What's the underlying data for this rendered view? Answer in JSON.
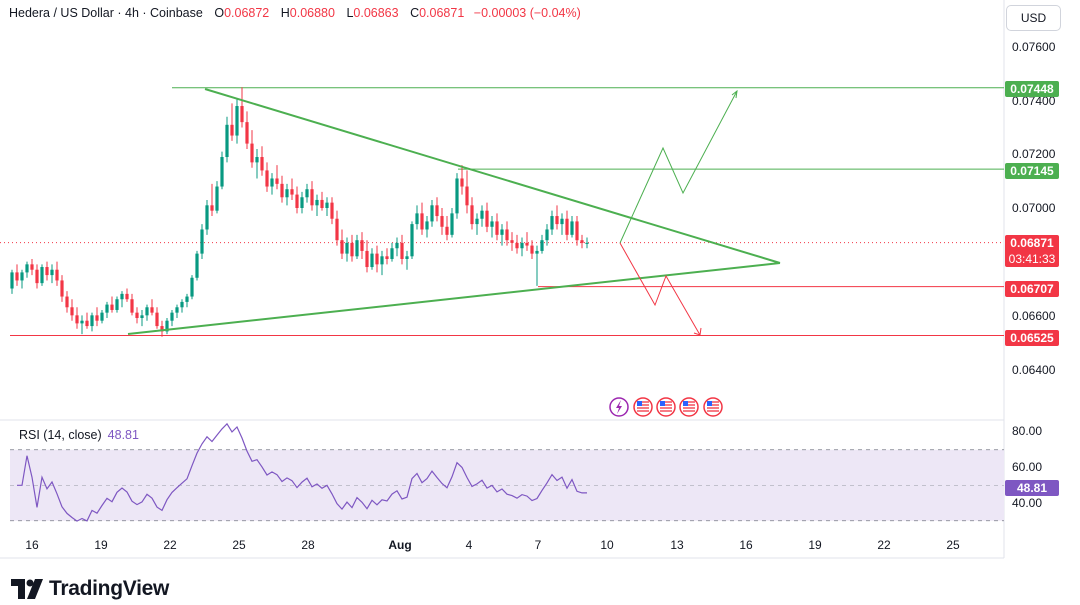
{
  "header": {
    "symbol": "Hedera / US Dollar · 4h · Coinbase",
    "o_label": "O",
    "o_value": "0.06872",
    "h_label": "H",
    "h_value": "0.06880",
    "l_label": "L",
    "l_value": "0.06863",
    "c_label": "C",
    "c_value": "0.06871",
    "change": "−0.00003 (−0.04%)"
  },
  "currency_button": "USD",
  "rsi": {
    "label": "RSI (14, close)",
    "value": "48.81",
    "ticks": [
      "80.00",
      "60.00",
      "40.00"
    ]
  },
  "brand": {
    "name": "TradingView"
  },
  "colors": {
    "up": "#089981",
    "down": "#f23645",
    "pattern": "#4caf50",
    "rsi": "#7e57c2",
    "rsi_band": "#ede7f6"
  },
  "chart_data": {
    "type": "candlestick",
    "instrument": "Hedera / US Dollar",
    "timeframe": "4h",
    "exchange": "Coinbase",
    "y_ticks": [
      "0.07600",
      "0.07400",
      "0.07200",
      "0.07000",
      "0.06600",
      "0.06400"
    ],
    "ylim": [
      0.0632,
      0.0777
    ],
    "x_ticks": [
      "16",
      "19",
      "22",
      "25",
      "28",
      "Aug",
      "4",
      "7",
      "10",
      "13",
      "16",
      "19",
      "22",
      "25"
    ],
    "last_price": {
      "value": "0.06871",
      "countdown": "03:41:33"
    },
    "levels": [
      {
        "price": 0.07448,
        "label": "0.07448",
        "color": "#4caf50"
      },
      {
        "price": 0.07145,
        "label": "0.07145",
        "color": "#4caf50"
      },
      {
        "price": 0.06707,
        "label": "0.06707",
        "color": "#f23645"
      },
      {
        "price": 0.06525,
        "label": "0.06525",
        "color": "#f23645"
      }
    ],
    "candles_approx": [
      [
        0.067,
        0.0677,
        0.0668,
        0.0676
      ],
      [
        0.0676,
        0.0679,
        0.0671,
        0.0673
      ],
      [
        0.0673,
        0.0677,
        0.067,
        0.0676
      ],
      [
        0.0676,
        0.068,
        0.0674,
        0.0679
      ],
      [
        0.0679,
        0.0681,
        0.0675,
        0.0677
      ],
      [
        0.0677,
        0.0679,
        0.067,
        0.0672
      ],
      [
        0.0672,
        0.0679,
        0.0671,
        0.0678
      ],
      [
        0.0678,
        0.068,
        0.0673,
        0.0675
      ],
      [
        0.0675,
        0.0679,
        0.0672,
        0.0677
      ],
      [
        0.0677,
        0.068,
        0.0671,
        0.0673
      ],
      [
        0.0673,
        0.0675,
        0.0665,
        0.0667
      ],
      [
        0.0667,
        0.0669,
        0.0661,
        0.0663
      ],
      [
        0.0663,
        0.0666,
        0.0658,
        0.066
      ],
      [
        0.066,
        0.0663,
        0.0655,
        0.0657
      ],
      [
        0.0657,
        0.066,
        0.0653,
        0.0658
      ],
      [
        0.0658,
        0.0661,
        0.0655,
        0.0656
      ],
      [
        0.0656,
        0.0661,
        0.0654,
        0.066
      ],
      [
        0.066,
        0.0663,
        0.0656,
        0.0658
      ],
      [
        0.0658,
        0.0662,
        0.0657,
        0.0661
      ],
      [
        0.0661,
        0.0665,
        0.0659,
        0.0664
      ],
      [
        0.0664,
        0.0667,
        0.0661,
        0.0662
      ],
      [
        0.0662,
        0.0667,
        0.0661,
        0.0666
      ],
      [
        0.0666,
        0.0669,
        0.0663,
        0.0668
      ],
      [
        0.0668,
        0.067,
        0.0665,
        0.0666
      ],
      [
        0.0666,
        0.0668,
        0.066,
        0.0661
      ],
      [
        0.0661,
        0.0663,
        0.0657,
        0.0659
      ],
      [
        0.0659,
        0.0662,
        0.0656,
        0.066
      ],
      [
        0.066,
        0.0664,
        0.0658,
        0.0663
      ],
      [
        0.0663,
        0.0666,
        0.066,
        0.0661
      ],
      [
        0.0661,
        0.0663,
        0.0655,
        0.0656
      ],
      [
        0.0656,
        0.0658,
        0.0652,
        0.0654
      ],
      [
        0.0654,
        0.0659,
        0.0653,
        0.0658
      ],
      [
        0.0658,
        0.0662,
        0.0656,
        0.0661
      ],
      [
        0.0661,
        0.0664,
        0.0659,
        0.0663
      ],
      [
        0.0663,
        0.0666,
        0.0661,
        0.0665
      ],
      [
        0.0665,
        0.0668,
        0.0663,
        0.0667
      ],
      [
        0.0667,
        0.0675,
        0.0666,
        0.0674
      ],
      [
        0.0674,
        0.0684,
        0.0673,
        0.0683
      ],
      [
        0.0683,
        0.0694,
        0.0681,
        0.0692
      ],
      [
        0.0692,
        0.0703,
        0.069,
        0.0701
      ],
      [
        0.0701,
        0.0709,
        0.0697,
        0.0699
      ],
      [
        0.0699,
        0.071,
        0.0698,
        0.0708
      ],
      [
        0.0708,
        0.0721,
        0.0707,
        0.0719
      ],
      [
        0.0719,
        0.0734,
        0.0717,
        0.0731
      ],
      [
        0.0731,
        0.0739,
        0.0725,
        0.0727
      ],
      [
        0.0727,
        0.0741,
        0.0724,
        0.0738
      ],
      [
        0.0738,
        0.0745,
        0.073,
        0.0732
      ],
      [
        0.0732,
        0.0736,
        0.0722,
        0.0724
      ],
      [
        0.0724,
        0.0729,
        0.0715,
        0.0717
      ],
      [
        0.0717,
        0.0722,
        0.0711,
        0.0719
      ],
      [
        0.0719,
        0.0723,
        0.0712,
        0.0714
      ],
      [
        0.0714,
        0.0717,
        0.0706,
        0.0708
      ],
      [
        0.0708,
        0.0713,
        0.0705,
        0.0711
      ],
      [
        0.0711,
        0.0716,
        0.0707,
        0.0709
      ],
      [
        0.0709,
        0.0712,
        0.0702,
        0.0704
      ],
      [
        0.0704,
        0.0709,
        0.0701,
        0.0707
      ],
      [
        0.0707,
        0.0711,
        0.0703,
        0.0705
      ],
      [
        0.0705,
        0.0708,
        0.0698,
        0.07
      ],
      [
        0.07,
        0.0706,
        0.0698,
        0.0704
      ],
      [
        0.0704,
        0.0709,
        0.0702,
        0.0707
      ],
      [
        0.0707,
        0.071,
        0.0699,
        0.0701
      ],
      [
        0.0701,
        0.0705,
        0.0697,
        0.0703
      ],
      [
        0.0703,
        0.0706,
        0.0699,
        0.07
      ],
      [
        0.07,
        0.0704,
        0.0697,
        0.0702
      ],
      [
        0.0702,
        0.0704,
        0.0694,
        0.0696
      ],
      [
        0.0696,
        0.0699,
        0.0686,
        0.0688
      ],
      [
        0.0688,
        0.0692,
        0.0681,
        0.0683
      ],
      [
        0.0683,
        0.0689,
        0.068,
        0.0687
      ],
      [
        0.0687,
        0.069,
        0.068,
        0.0682
      ],
      [
        0.0682,
        0.069,
        0.0681,
        0.0688
      ],
      [
        0.0688,
        0.0691,
        0.0681,
        0.0684
      ],
      [
        0.0684,
        0.0688,
        0.0676,
        0.0678
      ],
      [
        0.0678,
        0.0685,
        0.0677,
        0.0683
      ],
      [
        0.0683,
        0.0686,
        0.0676,
        0.0679
      ],
      [
        0.0679,
        0.0684,
        0.0675,
        0.0682
      ],
      [
        0.0682,
        0.0685,
        0.0679,
        0.0681
      ],
      [
        0.0681,
        0.0687,
        0.068,
        0.0685
      ],
      [
        0.0685,
        0.0689,
        0.0682,
        0.0687
      ],
      [
        0.0687,
        0.069,
        0.0679,
        0.0681
      ],
      [
        0.0681,
        0.0684,
        0.0677,
        0.0682
      ],
      [
        0.0682,
        0.0695,
        0.0681,
        0.0694
      ],
      [
        0.0694,
        0.0701,
        0.0692,
        0.0698
      ],
      [
        0.0698,
        0.0702,
        0.069,
        0.0692
      ],
      [
        0.0692,
        0.0697,
        0.0689,
        0.0695
      ],
      [
        0.0695,
        0.0703,
        0.0693,
        0.0701
      ],
      [
        0.0701,
        0.0704,
        0.0695,
        0.0697
      ],
      [
        0.0697,
        0.07,
        0.069,
        0.0693
      ],
      [
        0.0693,
        0.0697,
        0.0688,
        0.069
      ],
      [
        0.069,
        0.07,
        0.0689,
        0.0698
      ],
      [
        0.0698,
        0.0713,
        0.0696,
        0.0711
      ],
      [
        0.0711,
        0.0716,
        0.0705,
        0.0708
      ],
      [
        0.0708,
        0.0714,
        0.0698,
        0.0701
      ],
      [
        0.0701,
        0.0704,
        0.0692,
        0.0694
      ],
      [
        0.0694,
        0.0698,
        0.069,
        0.0696
      ],
      [
        0.0696,
        0.0701,
        0.0693,
        0.0699
      ],
      [
        0.0699,
        0.0702,
        0.0691,
        0.0693
      ],
      [
        0.0693,
        0.0697,
        0.0689,
        0.0695
      ],
      [
        0.0695,
        0.0698,
        0.0688,
        0.069
      ],
      [
        0.069,
        0.0694,
        0.0686,
        0.0692
      ],
      [
        0.0692,
        0.0695,
        0.0686,
        0.0688
      ],
      [
        0.0688,
        0.0691,
        0.0684,
        0.0687
      ],
      [
        0.0687,
        0.069,
        0.0683,
        0.0685
      ],
      [
        0.0685,
        0.0689,
        0.0682,
        0.0687
      ],
      [
        0.0687,
        0.0691,
        0.0684,
        0.0686
      ],
      [
        0.0686,
        0.0688,
        0.0681,
        0.0683
      ],
      [
        0.0683,
        0.0686,
        0.0671,
        0.0684
      ],
      [
        0.0684,
        0.069,
        0.0683,
        0.0688
      ],
      [
        0.0688,
        0.0694,
        0.0686,
        0.0692
      ],
      [
        0.0692,
        0.0699,
        0.069,
        0.0697
      ],
      [
        0.0697,
        0.0701,
        0.0692,
        0.0694
      ],
      [
        0.0694,
        0.0698,
        0.069,
        0.0696
      ],
      [
        0.0696,
        0.0699,
        0.0688,
        0.069
      ],
      [
        0.069,
        0.0697,
        0.0689,
        0.0695
      ],
      [
        0.0695,
        0.0697,
        0.0686,
        0.0688
      ],
      [
        0.0688,
        0.069,
        0.0685,
        0.0687
      ],
      [
        0.0687,
        0.0689,
        0.0685,
        0.0687
      ]
    ]
  }
}
